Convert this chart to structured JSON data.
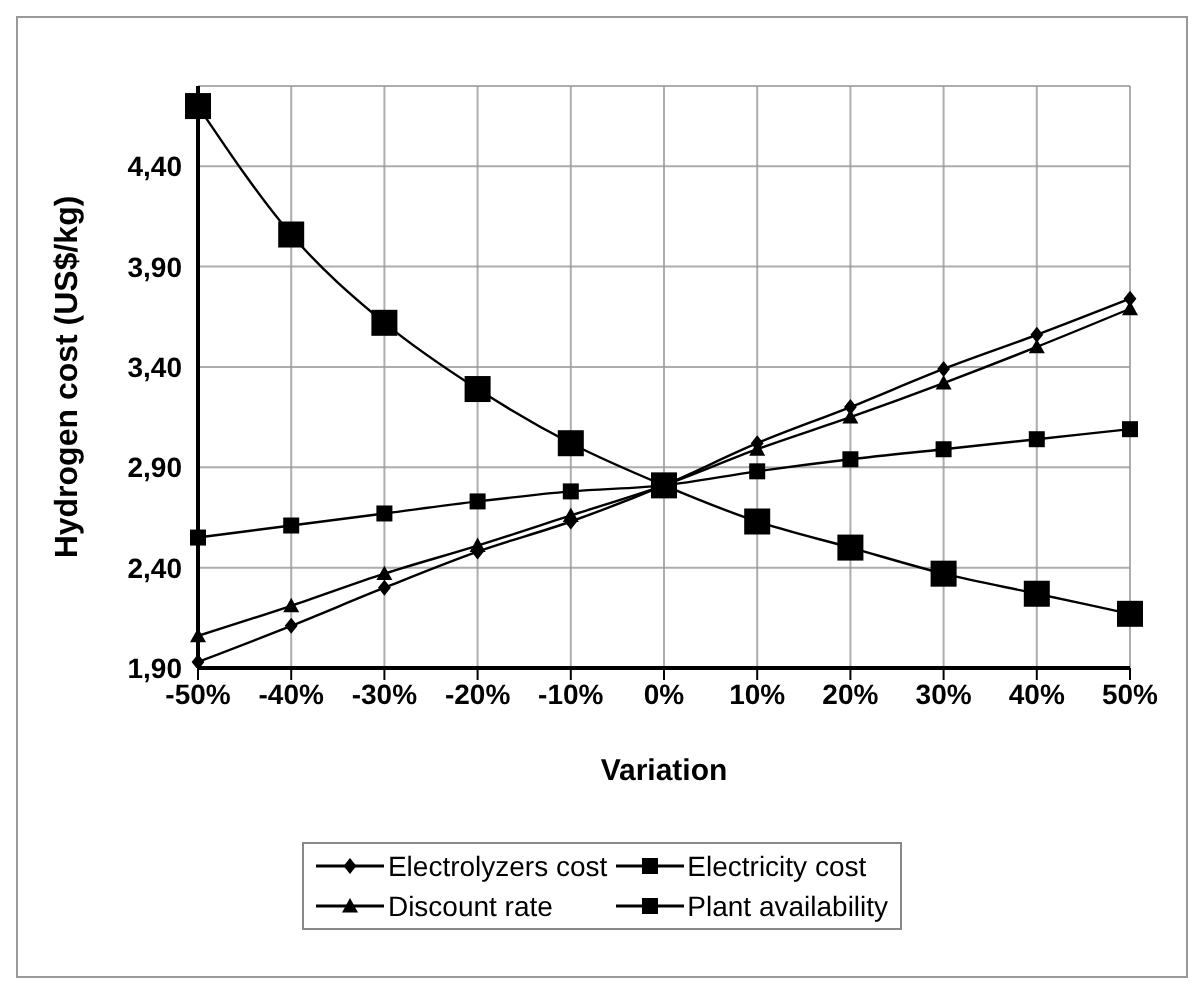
{
  "chart_data": {
    "type": "line",
    "xlabel": "Variation",
    "ylabel": "Hydrogen cost (US$/kg)",
    "categories": [
      "-50%",
      "-40%",
      "-30%",
      "-20%",
      "-10%",
      "0%",
      "10%",
      "20%",
      "30%",
      "40%",
      "50%"
    ],
    "series": [
      {
        "name": "Electrolyzers cost",
        "color": "#000000",
        "marker": "diamond",
        "values": [
          1.93,
          2.11,
          2.3,
          2.48,
          2.63,
          2.81,
          3.02,
          3.2,
          3.39,
          3.56,
          3.74
        ]
      },
      {
        "name": "Electricity cost",
        "color": "#000000",
        "marker": "square",
        "values": [
          2.55,
          2.61,
          2.67,
          2.73,
          2.78,
          2.81,
          2.88,
          2.94,
          2.99,
          3.04,
          3.09
        ]
      },
      {
        "name": "Discount rate",
        "color": "#000000",
        "marker": "triangle",
        "values": [
          2.06,
          2.21,
          2.37,
          2.51,
          2.66,
          2.81,
          2.99,
          3.15,
          3.32,
          3.5,
          3.69
        ]
      },
      {
        "name": "Plant availability",
        "color": "#000000",
        "marker": "square",
        "values": [
          4.7,
          4.06,
          3.62,
          3.29,
          3.02,
          2.81,
          2.63,
          2.5,
          2.37,
          2.27,
          2.17
        ]
      }
    ],
    "ylim": [
      1.9,
      4.8
    ],
    "yticks": [
      {
        "value": 1.9,
        "label": "1,90"
      },
      {
        "value": 2.4,
        "label": "2,40"
      },
      {
        "value": 2.9,
        "label": "2,90"
      },
      {
        "value": 3.4,
        "label": "3,40"
      },
      {
        "value": 3.9,
        "label": "3,90"
      },
      {
        "value": 4.4,
        "label": "4,40"
      }
    ],
    "grid": true,
    "legend": "bottom",
    "line_style": "solid"
  }
}
